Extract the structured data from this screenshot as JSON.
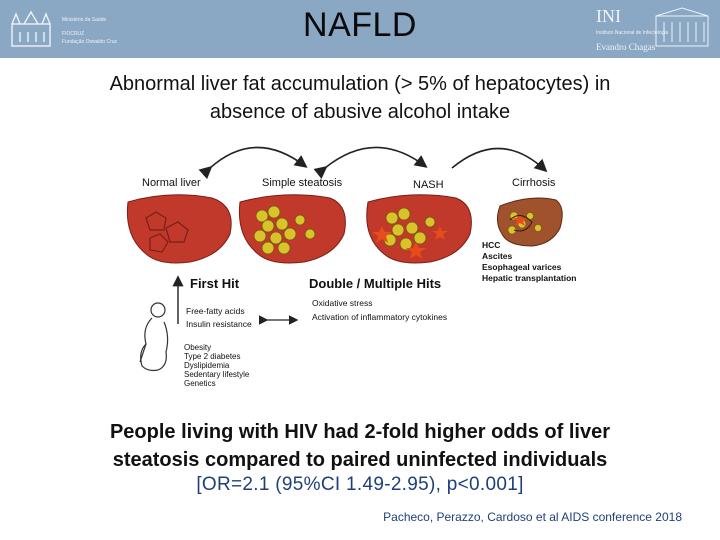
{
  "header": {
    "title": "NAFLD",
    "logo_left_lines": [
      "Ministério da Saúde",
      "FIOCRUZ",
      "Fundação Oswaldo Cruz"
    ],
    "logo_right_name": "INI",
    "logo_right_sub": [
      "Instituto Nacional de Infectologia"
    ],
    "logo_right_person": "Evandro Chagas",
    "bg_color": "#8aa7c4"
  },
  "subtitle": {
    "line1": "Abnormal liver fat accumulation (> 5% of hepatocytes) in",
    "line2": "absence of abusive alcohol intake"
  },
  "diagram": {
    "stages": [
      "Normal liver",
      "Simple steatosis",
      "NASH",
      "Cirrhosis"
    ],
    "cirrhosis_outcomes": [
      "HCC",
      "Ascites",
      "Esophageal varices",
      "Hepatic transplantation"
    ],
    "first_hit": "First Hit",
    "multiple_hits": "Double / Multiple Hits",
    "first_hit_causes": [
      "Free-fatty acids",
      "Insulin resistance"
    ],
    "multiple_hit_causes": [
      "Oxidative stress",
      "Activation of inflammatory cytokines"
    ],
    "risk_factors": [
      "Obesity",
      "Type 2 diabetes",
      "Dyslipidemia",
      "Sedentary lifestyle",
      "Genetics"
    ],
    "colors": {
      "liver": "#c0392b",
      "steatosis_fat": "#d9c22a",
      "nash_star": "#e74c1c",
      "cirrhosis": "#a0522d"
    }
  },
  "bottom": {
    "line1": "People living with HIV had 2-fold higher odds of liver",
    "line2": "steatosis compared to paired uninfected individuals",
    "or_line": "[OR=2.1 (95%CI 1.49-2.95), p<0.001]"
  },
  "citation": "Pacheco, Perazzo, Cardoso et al AIDS conference 2018"
}
